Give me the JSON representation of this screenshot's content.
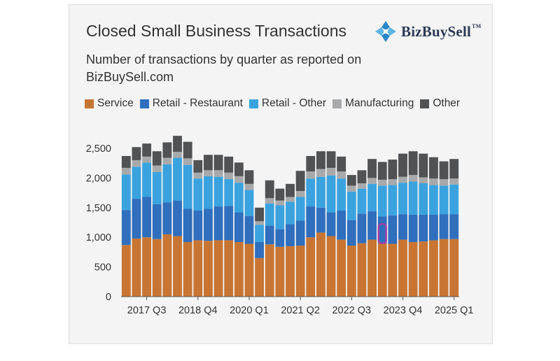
{
  "header": {
    "title": "Closed Small Business Transactions",
    "subtitle": "Number of transactions by quarter as reported on BizBuySell.com",
    "brand": "BizBuySell",
    "brand_tm": "TM"
  },
  "colors": {
    "service": "#c87533",
    "retail_restaurant": "#2f6fbd",
    "retail_other": "#3aa3df",
    "manufacturing": "#a8a9ab",
    "other": "#505254",
    "highlight": "#a23ea8"
  },
  "chart_data": {
    "type": "bar",
    "stacked": true,
    "title": "Closed Small Business Transactions",
    "subtitle": "Number of transactions by quarter as reported on BizBuySell.com",
    "xlabel": "",
    "ylabel": "",
    "ylim": [
      0,
      2700
    ],
    "yticks": [
      0,
      500,
      1000,
      1500,
      2000,
      2500
    ],
    "ytick_labels": [
      "0",
      "500",
      "1,000",
      "1,500",
      "2,000",
      "2,500"
    ],
    "legend_position": "top",
    "grid": false,
    "categories": [
      "2017 Q1",
      "2017 Q2",
      "2017 Q3",
      "2017 Q4",
      "2018 Q1",
      "2018 Q2",
      "2018 Q3",
      "2018 Q4",
      "2019 Q1",
      "2019 Q2",
      "2019 Q3",
      "2019 Q4",
      "2020 Q1",
      "2020 Q2",
      "2020 Q3",
      "2020 Q4",
      "2021 Q1",
      "2021 Q2",
      "2021 Q3",
      "2021 Q4",
      "2022 Q1",
      "2022 Q2",
      "2022 Q3",
      "2022 Q4",
      "2023 Q1",
      "2023 Q2",
      "2023 Q3",
      "2023 Q4",
      "2024 Q1",
      "2024 Q2",
      "2024 Q3",
      "2024 Q4",
      "2025 Q1"
    ],
    "xtick_labels": [
      "2017 Q3",
      "2018 Q4",
      "2020 Q1",
      "2021 Q2",
      "2022 Q3",
      "2023 Q4",
      "2025 Q1"
    ],
    "xtick_indices": [
      2,
      7,
      12,
      17,
      22,
      27,
      32
    ],
    "series": [
      {
        "name": "Service",
        "color_key": "service",
        "values": [
          870,
          980,
          1000,
          970,
          1050,
          1020,
          920,
          950,
          940,
          950,
          950,
          920,
          890,
          650,
          880,
          840,
          850,
          860,
          1000,
          1080,
          1020,
          960,
          860,
          900,
          960,
          900,
          890,
          960,
          920,
          930,
          950,
          970,
          970
        ]
      },
      {
        "name": "Retail - Restaurant",
        "color_key": "retail_restaurant",
        "values": [
          590,
          670,
          680,
          590,
          540,
          600,
          560,
          500,
          540,
          570,
          580,
          500,
          470,
          270,
          320,
          300,
          370,
          420,
          520,
          420,
          400,
          490,
          430,
          500,
          480,
          450,
          480,
          430,
          460,
          450,
          430,
          420,
          420
        ]
      },
      {
        "name": "Retail - Other",
        "color_key": "retail_other",
        "values": [
          600,
          540,
          580,
          540,
          640,
          720,
          740,
          540,
          550,
          500,
          450,
          500,
          440,
          290,
          370,
          400,
          380,
          400,
          470,
          520,
          620,
          540,
          480,
          420,
          460,
          520,
          510,
          530,
          560,
          530,
          500,
          480,
          500
        ]
      },
      {
        "name": "Manufacturing",
        "color_key": "manufacturing",
        "values": [
          110,
          110,
          100,
          110,
          110,
          100,
          110,
          100,
          100,
          110,
          110,
          110,
          100,
          60,
          90,
          80,
          80,
          100,
          120,
          130,
          130,
          120,
          100,
          90,
          100,
          100,
          100,
          100,
          110,
          100,
          110,
          110,
          100
        ]
      },
      {
        "name": "Other",
        "color_key": "other",
        "values": [
          200,
          220,
          220,
          240,
          260,
          270,
          280,
          210,
          260,
          260,
          270,
          230,
          230,
          230,
          300,
          200,
          220,
          340,
          260,
          300,
          280,
          250,
          180,
          220,
          320,
          300,
          330,
          390,
          400,
          400,
          360,
          300,
          330
        ]
      }
    ],
    "highlight": {
      "category": "2023 Q2",
      "index": 25
    }
  }
}
